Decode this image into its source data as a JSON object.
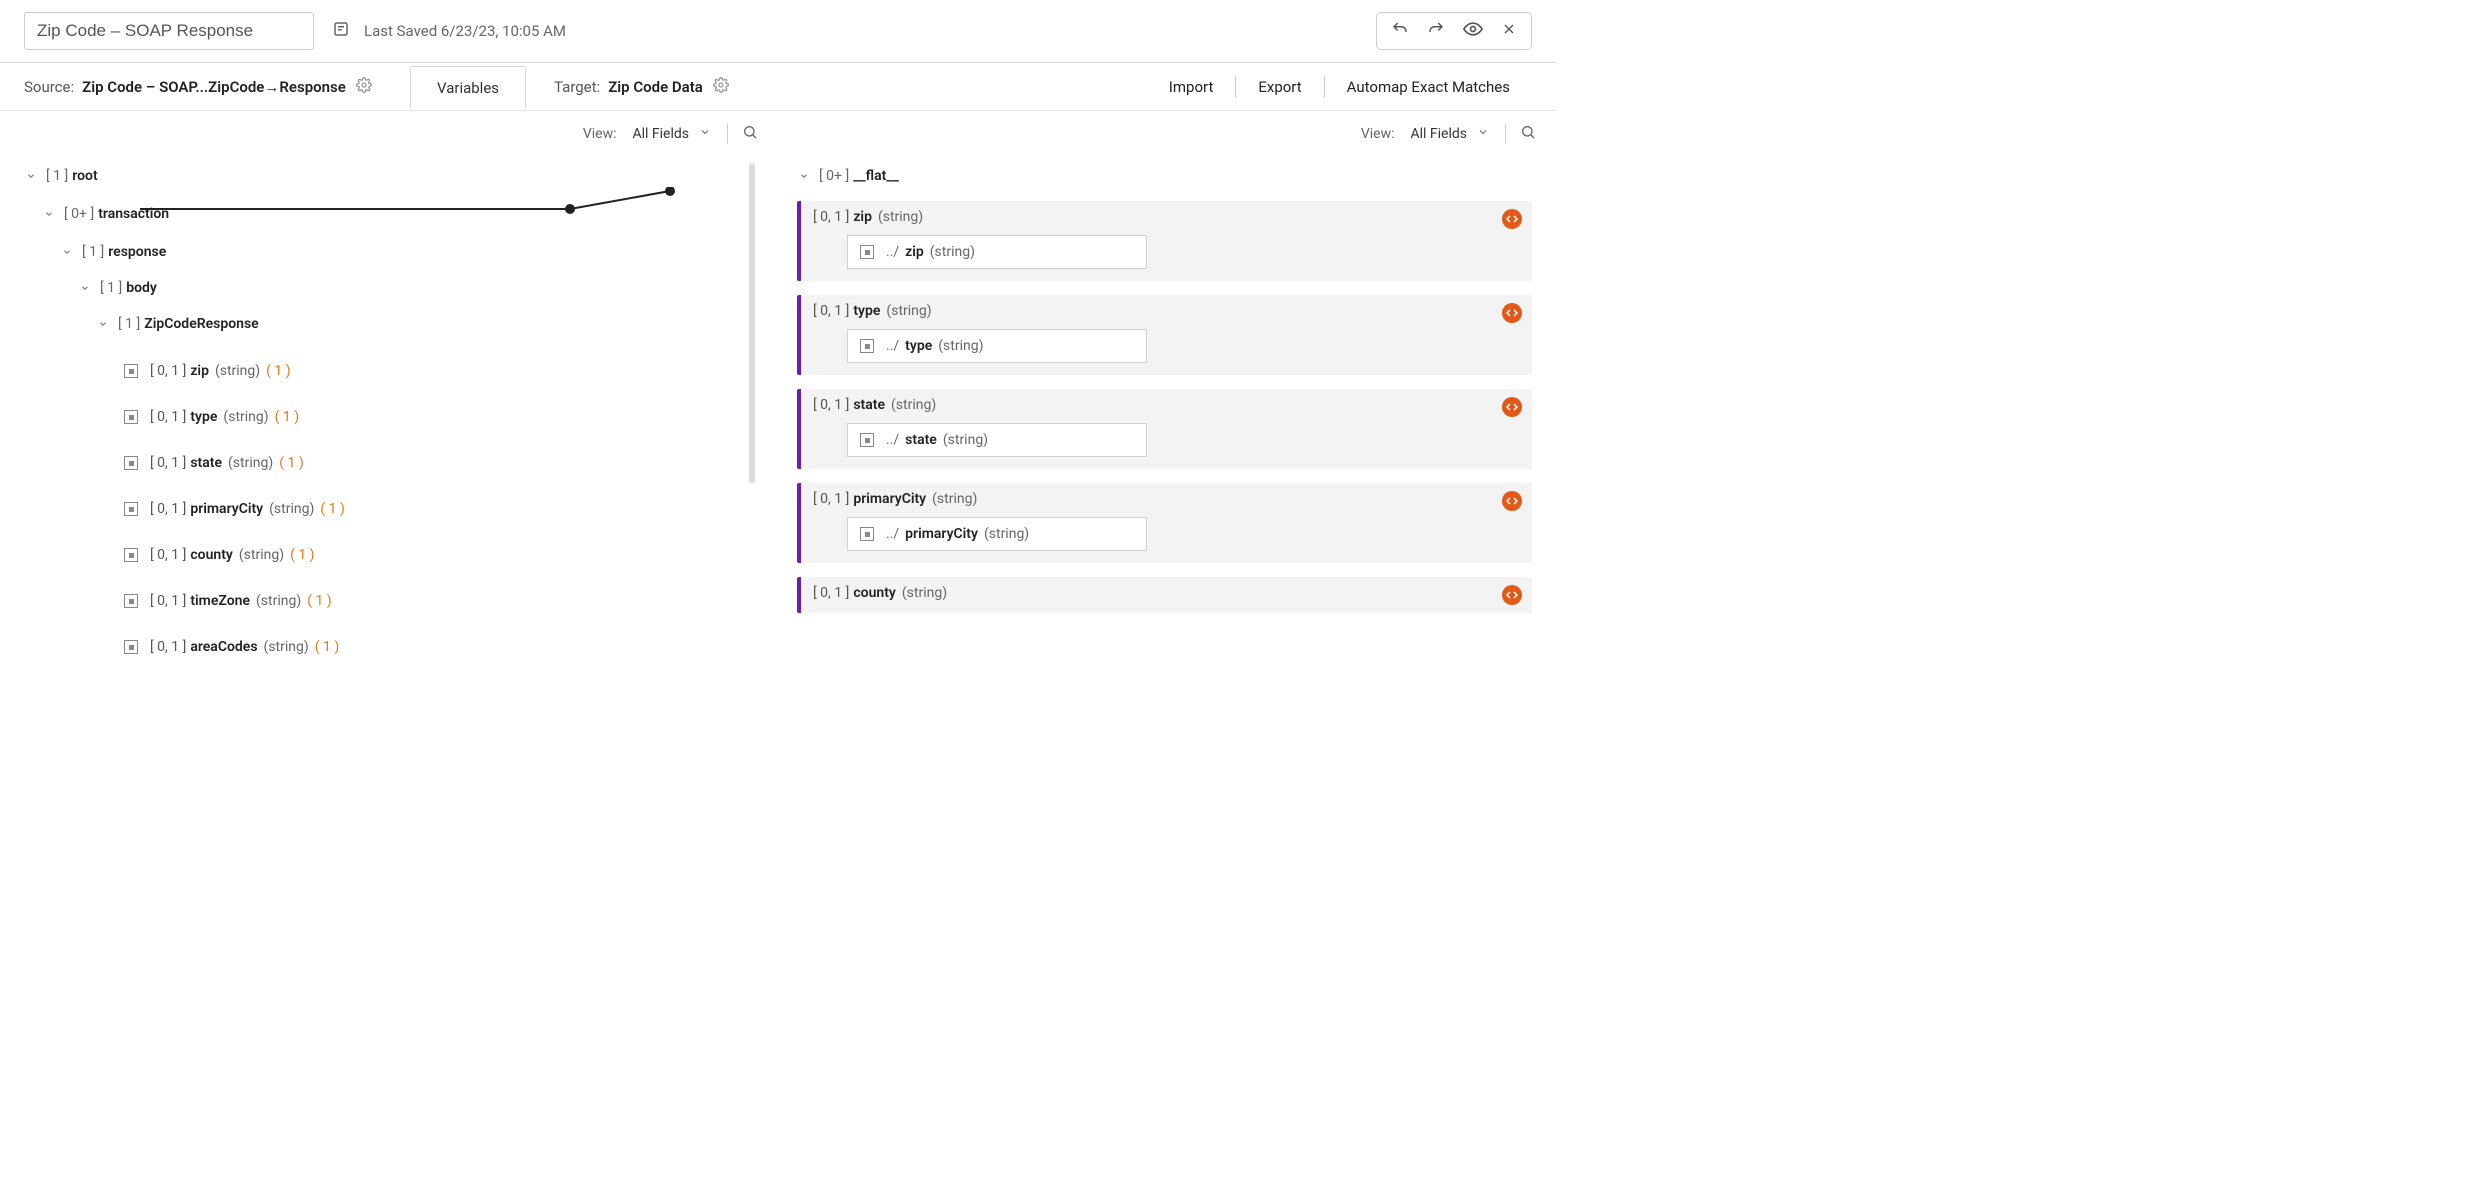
{
  "header": {
    "title": "Zip Code – SOAP Response",
    "last_saved": "Last Saved 6/23/23, 10:05 AM"
  },
  "subheader": {
    "source_label": "Source:",
    "source_value": "Zip Code – SOAP...ZipCode→Response",
    "variables_tab": "Variables",
    "target_label": "Target:",
    "target_value": "Zip Code Data",
    "import": "Import",
    "export": "Export",
    "automap": "Automap Exact Matches"
  },
  "viewbar": {
    "view_label": "View:",
    "view_value": "All Fields"
  },
  "source_tree": {
    "root": {
      "cardinality": "[ 1 ]",
      "name": "root"
    },
    "transaction": {
      "cardinality": "[ 0+ ]",
      "name": "transaction"
    },
    "response": {
      "cardinality": "[ 1 ]",
      "name": "response"
    },
    "body": {
      "cardinality": "[ 1 ]",
      "name": "body"
    },
    "zipcoderesponse": {
      "cardinality": "[ 1 ]",
      "name": "ZipCodeResponse"
    },
    "fields": [
      {
        "cardinality": "[ 0, 1 ]",
        "name": "zip",
        "type": "(string)",
        "count": "( 1 )"
      },
      {
        "cardinality": "[ 0, 1 ]",
        "name": "type",
        "type": "(string)",
        "count": "( 1 )"
      },
      {
        "cardinality": "[ 0, 1 ]",
        "name": "state",
        "type": "(string)",
        "count": "( 1 )"
      },
      {
        "cardinality": "[ 0, 1 ]",
        "name": "primaryCity",
        "type": "(string)",
        "count": "( 1 )"
      },
      {
        "cardinality": "[ 0, 1 ]",
        "name": "county",
        "type": "(string)",
        "count": "( 1 )"
      },
      {
        "cardinality": "[ 0, 1 ]",
        "name": "timeZone",
        "type": "(string)",
        "count": "( 1 )"
      },
      {
        "cardinality": "[ 0, 1 ]",
        "name": "areaCodes",
        "type": "(string)",
        "count": "( 1 )"
      }
    ]
  },
  "target_tree": {
    "flat": {
      "cardinality": "[ 0+ ]",
      "name": "__flat__"
    },
    "fields": [
      {
        "cardinality": "[ 0, 1 ]",
        "name": "zip",
        "type": "(string)",
        "mapping": {
          "prefix": "../",
          "name": "zip",
          "type": "(string)"
        }
      },
      {
        "cardinality": "[ 0, 1 ]",
        "name": "type",
        "type": "(string)",
        "mapping": {
          "prefix": "../",
          "name": "type",
          "type": "(string)"
        }
      },
      {
        "cardinality": "[ 0, 1 ]",
        "name": "state",
        "type": "(string)",
        "mapping": {
          "prefix": "../",
          "name": "state",
          "type": "(string)"
        }
      },
      {
        "cardinality": "[ 0, 1 ]",
        "name": "primaryCity",
        "type": "(string)",
        "mapping": {
          "prefix": "../",
          "name": "primaryCity",
          "type": "(string)"
        }
      },
      {
        "cardinality": "[ 0, 1 ]",
        "name": "county",
        "type": "(string)"
      }
    ]
  },
  "colors": {
    "accent_purple": "#6a1db5",
    "badge_orange": "#e25a1a",
    "count_orange": "#e67817"
  }
}
